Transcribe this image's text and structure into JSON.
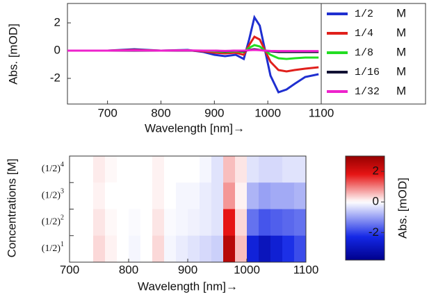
{
  "chart_data": [
    {
      "type": "line",
      "ylabel": "Abs. [mOD]",
      "xlabel": "Wavelength [nm]→",
      "xlim": [
        625,
        1100
      ],
      "xticks": [
        700,
        800,
        900,
        1000,
        1100
      ],
      "ylim": [
        -3.85,
        3.4
      ],
      "yticks": [
        -2,
        0,
        2
      ],
      "legend_unit": "M",
      "x": [
        625,
        650,
        700,
        750,
        800,
        850,
        880,
        900,
        920,
        940,
        955,
        965,
        975,
        985,
        995,
        1005,
        1020,
        1035,
        1050,
        1070,
        1095
      ],
      "series": [
        {
          "name": "1/2",
          "color": "#1f2fd0",
          "values": [
            0,
            0,
            0,
            0.1,
            0,
            0.05,
            -0.1,
            -0.3,
            -0.4,
            -0.3,
            -0.6,
            0.8,
            2.4,
            1.8,
            0,
            -1.8,
            -3.0,
            -2.8,
            -2.4,
            -1.9,
            -1.7
          ]
        },
        {
          "name": "1/4",
          "color": "#e0201c",
          "values": [
            0,
            0,
            0,
            0.05,
            0,
            0.02,
            -0.05,
            -0.15,
            -0.2,
            -0.15,
            -0.3,
            0.4,
            1.0,
            0.8,
            0,
            -0.8,
            -1.4,
            -1.5,
            -1.4,
            -1.3,
            -1.2
          ]
        },
        {
          "name": "1/8",
          "color": "#22dd22",
          "values": [
            0,
            0,
            0,
            0,
            0,
            0,
            0,
            -0.05,
            -0.1,
            -0.05,
            -0.1,
            0.2,
            0.4,
            0.3,
            0,
            -0.3,
            -0.55,
            -0.6,
            -0.55,
            -0.5,
            -0.5
          ]
        },
        {
          "name": "1/16",
          "color": "#111133",
          "values": [
            0,
            0,
            0,
            0,
            0,
            0,
            0,
            0,
            -0.05,
            0,
            -0.05,
            0.05,
            0.1,
            0.05,
            0,
            -0.05,
            -0.1,
            -0.1,
            -0.1,
            -0.1,
            -0.1
          ]
        },
        {
          "name": "1/32",
          "color": "#ee22cc",
          "values": [
            0,
            0,
            0,
            0.02,
            0,
            0.02,
            0,
            0,
            -0.02,
            0,
            0,
            0.03,
            0.05,
            0.03,
            0,
            -0.02,
            -0.03,
            -0.03,
            -0.03,
            -0.03,
            -0.03
          ]
        }
      ]
    },
    {
      "type": "heatmap",
      "ylabel": "Concentrations [M]",
      "xlabel": "Wavelength [nm]→",
      "colorbar_label": "Abs. [mOD]",
      "xlim": [
        700,
        1100
      ],
      "xticks": [
        700,
        800,
        900,
        1000,
        1100
      ],
      "clim": [
        -3.8,
        3.0
      ],
      "cticks": [
        -2,
        0,
        2
      ],
      "y_categories": [
        {
          "base": "(1/2)",
          "exponent": "4"
        },
        {
          "base": "(1/2)",
          "exponent": "3"
        },
        {
          "base": "(1/2)",
          "exponent": "2"
        },
        {
          "base": "(1/2)",
          "exponent": "1"
        }
      ],
      "x_bins": [
        700,
        720,
        740,
        760,
        780,
        800,
        820,
        840,
        860,
        880,
        900,
        920,
        940,
        960,
        980,
        1000,
        1020,
        1040,
        1060,
        1080,
        1100
      ],
      "z": [
        [
          0,
          0,
          0.15,
          0.05,
          0,
          0,
          0,
          0.1,
          0,
          0,
          0,
          -0.1,
          -0.3,
          0.5,
          0.2,
          -0.3,
          -0.4,
          -0.4,
          -0.3,
          -0.3
        ],
        [
          0,
          0,
          0.1,
          0,
          0,
          0,
          0,
          0.1,
          0,
          -0.1,
          -0.1,
          -0.2,
          -0.3,
          0.8,
          0.1,
          -0.8,
          -1.0,
          -0.9,
          -0.9,
          -0.8
        ],
        [
          0,
          0,
          0.2,
          0.05,
          0,
          -0.05,
          0,
          0.2,
          -0.05,
          -0.1,
          -0.15,
          -0.2,
          -0.3,
          1.8,
          0.3,
          -1.5,
          -1.8,
          -1.7,
          -1.6,
          -1.5
        ],
        [
          0,
          0,
          0.3,
          0.1,
          0,
          -0.1,
          0,
          0.3,
          -0.1,
          -0.2,
          -0.3,
          -0.4,
          -0.5,
          2.5,
          0.5,
          -2.5,
          -3.0,
          -2.6,
          -2.2,
          -1.9
        ]
      ]
    }
  ]
}
